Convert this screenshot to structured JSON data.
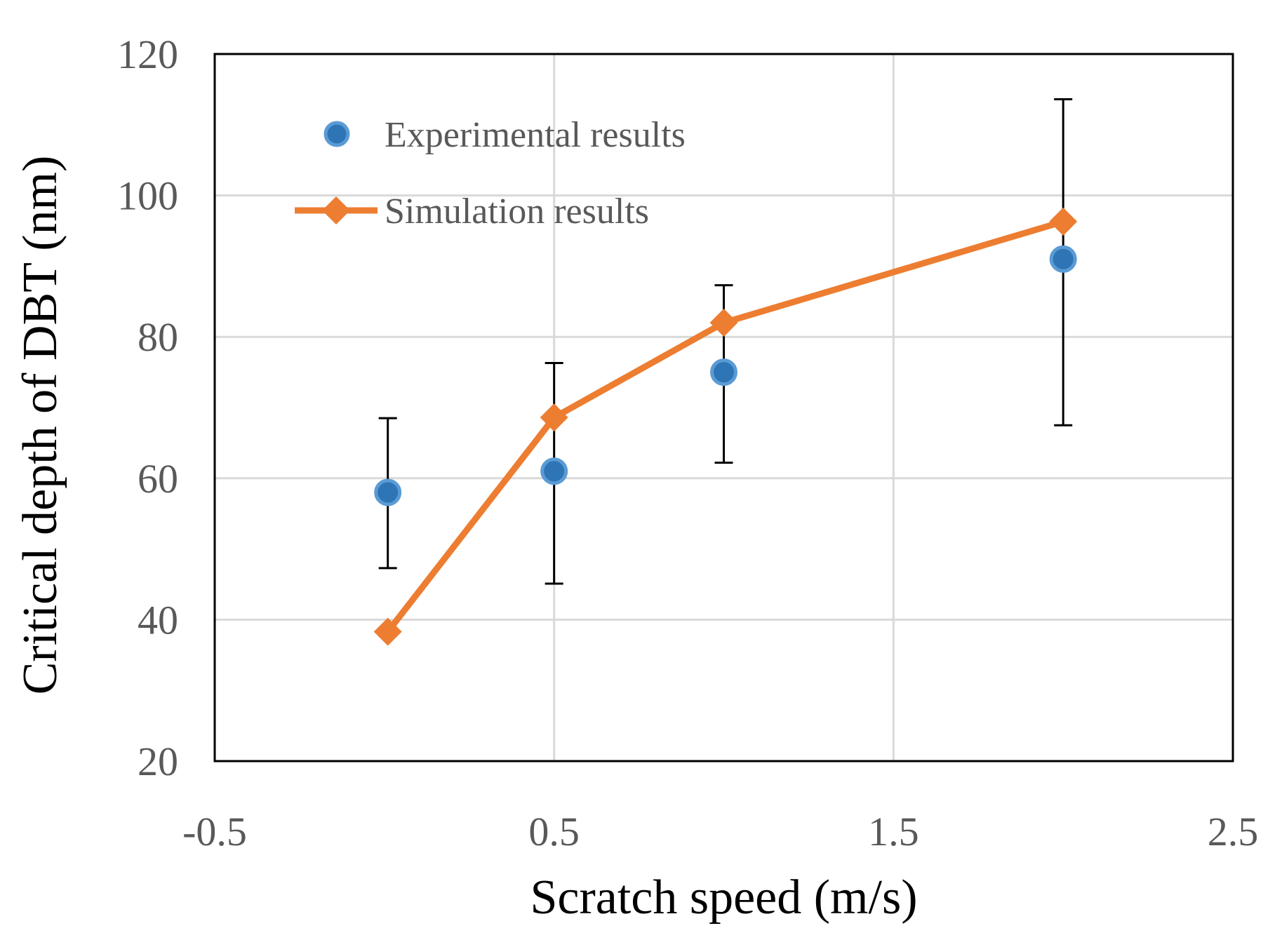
{
  "chart_data": {
    "type": "scatter",
    "title": "",
    "xlabel": "Scratch speed (m/s)",
    "ylabel": "Critical depth of DBT (nm)",
    "xlim": [
      -0.5,
      2.5
    ],
    "ylim": [
      20,
      120
    ],
    "x_ticks": [
      -0.5,
      0.5,
      1.5,
      2.5
    ],
    "x_tick_labels": [
      "-0.5",
      "0.5",
      "1.5",
      "2.5"
    ],
    "y_ticks": [
      20,
      40,
      60,
      80,
      100,
      120
    ],
    "y_tick_labels": [
      "20",
      "40",
      "60",
      "80",
      "100",
      "120"
    ],
    "grid": true,
    "legend_position": "top-left",
    "series": [
      {
        "name": "Experimental results",
        "kind": "scatter",
        "marker": "circle",
        "color": "#2e75b6",
        "x": [
          0.01,
          0.5,
          1.0,
          2.0
        ],
        "y": [
          58,
          61,
          75,
          91
        ],
        "error_upper": [
          68.5,
          76.3,
          87.3,
          113.6
        ],
        "error_lower": [
          47.3,
          45.1,
          62.2,
          67.5
        ]
      },
      {
        "name": "Simulation results",
        "kind": "line",
        "marker": "diamond",
        "color": "#ed7d31",
        "x": [
          0.01,
          0.5,
          1.0,
          2.0
        ],
        "y": [
          38.3,
          68.6,
          82,
          96.3
        ]
      }
    ]
  }
}
